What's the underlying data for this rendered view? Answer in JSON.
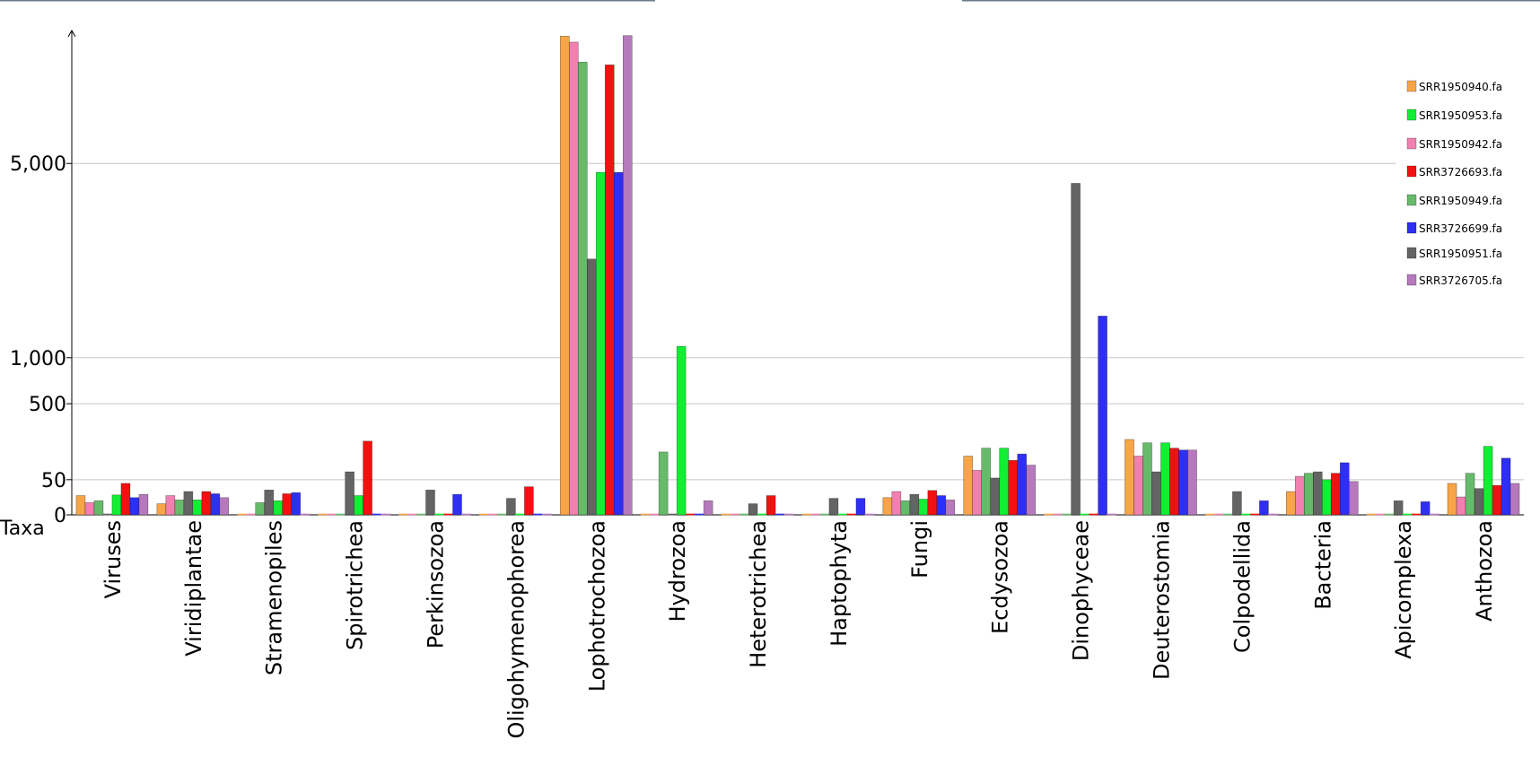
{
  "chart_data": {
    "type": "bar",
    "scale": "sqrt",
    "xlabel": "Taxa",
    "ylabel": "",
    "ylim": [
      0,
      9500
    ],
    "yticks": [
      0,
      50,
      500,
      1000,
      5000
    ],
    "ytick_labels": [
      "0",
      "50",
      "500",
      "1,000",
      "5,000"
    ],
    "grid": true,
    "legend_position": "top-right",
    "categories": [
      "Viruses",
      "Viridiplantae",
      "Stramenopiles",
      "Spirotrichea",
      "Perkinsozoa",
      "Oligohymenophorea",
      "Lophotrochozoa",
      "Hydrozoa",
      "Heterotrichea",
      "Haptophyta",
      "Fungi",
      "Ecdysozoa",
      "Dinophyceae",
      "Deuterostomia",
      "Colpodellida",
      "Bacteria",
      "Apicomplexa",
      "Anthozoa"
    ],
    "series": [
      {
        "name": "SRR1950940.fa",
        "color": "#f7a548",
        "values": [
          15,
          5,
          0,
          0,
          0,
          0,
          9280,
          0,
          0,
          0,
          12,
          140,
          0,
          230,
          0,
          22,
          0,
          40
        ]
      },
      {
        "name": "SRR1950942.fa",
        "color": "#f180b0",
        "values": [
          6,
          15,
          0,
          0,
          0,
          0,
          9050,
          0,
          0,
          0,
          22,
          80,
          0,
          140,
          0,
          60,
          0,
          13
        ]
      },
      {
        "name": "SRR1950949.fa",
        "color": "#66bb6a",
        "values": [
          8,
          9,
          6,
          0,
          0,
          0,
          8300,
          160,
          0,
          0,
          8,
          180,
          0,
          210,
          0,
          70,
          0,
          70
        ]
      },
      {
        "name": "SRR1950951.fa",
        "color": "#646464",
        "values": [
          0,
          22,
          25,
          75,
          25,
          11,
          2650,
          0,
          5,
          11,
          17,
          55,
          4450,
          75,
          22,
          75,
          8,
          28
        ]
      },
      {
        "name": "SRR1950953.fa",
        "color": "#11ee33",
        "values": [
          16,
          9,
          8,
          15,
          0,
          0,
          4750,
          1150,
          0,
          0,
          10,
          180,
          0,
          210,
          0,
          50,
          0,
          190
        ]
      },
      {
        "name": "SRR3726693.fa",
        "color": "#f21111",
        "values": [
          40,
          22,
          18,
          220,
          0,
          32,
          8200,
          0,
          15,
          0,
          24,
          120,
          0,
          180,
          0,
          70,
          0,
          35
        ]
      },
      {
        "name": "SRR3726699.fa",
        "color": "#2f2ff3",
        "values": [
          12,
          18,
          20,
          0,
          17,
          0,
          4750,
          0,
          0,
          11,
          15,
          150,
          1600,
          170,
          8,
          110,
          7,
          130
        ]
      },
      {
        "name": "SRR3726705.fa",
        "color": "#b679bb",
        "values": [
          17,
          12,
          0,
          0,
          0,
          0,
          9300,
          8,
          0,
          0,
          9,
          100,
          0,
          170,
          0,
          45,
          0,
          40
        ]
      }
    ],
    "legend_order": [
      "SRR1950940.fa",
      "SRR1950953.fa",
      "SRR1950942.fa",
      "SRR3726693.fa",
      "SRR1950949.fa",
      "SRR3726699.fa",
      "SRR1950951.fa",
      "SRR3726705.fa"
    ]
  }
}
